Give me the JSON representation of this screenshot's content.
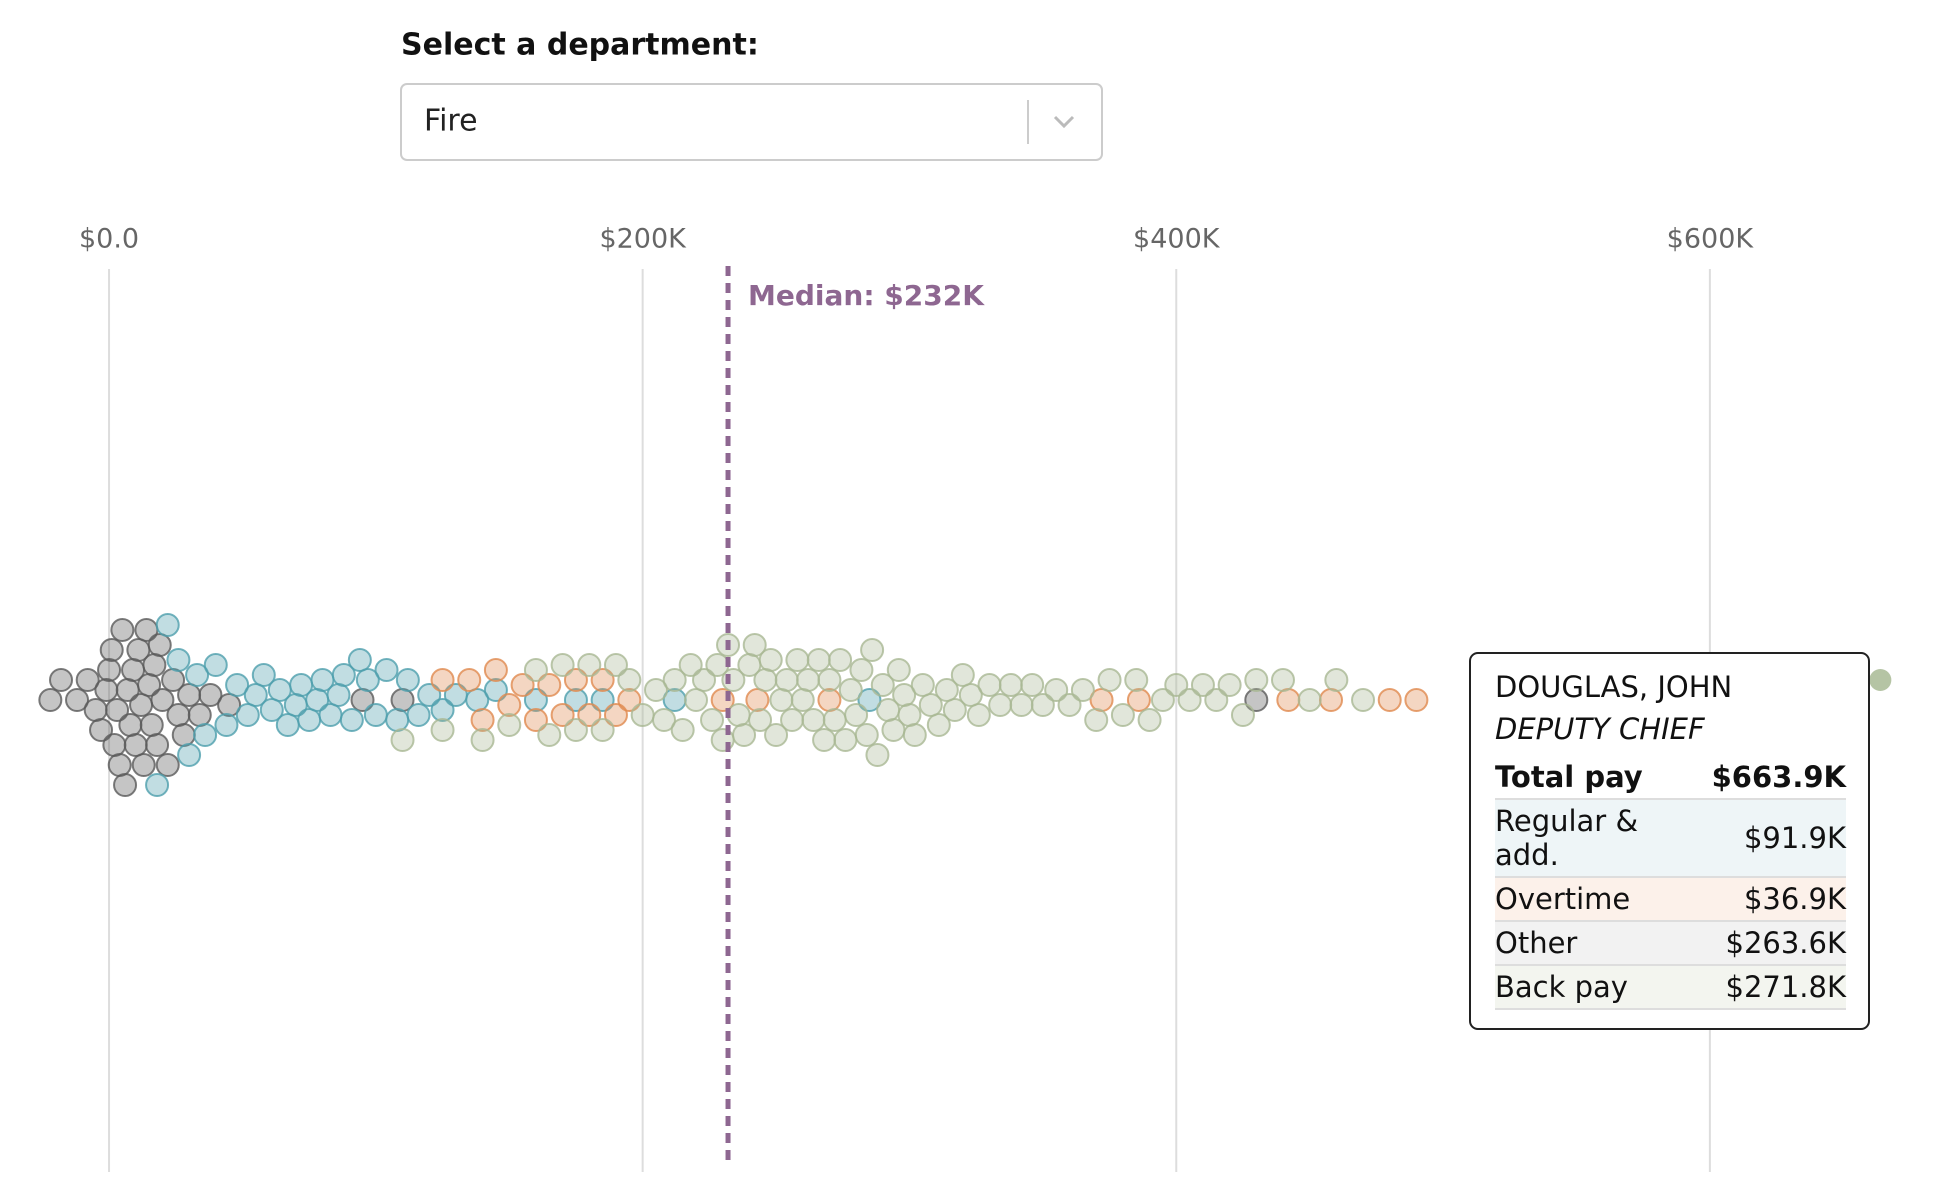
{
  "controls": {
    "label": "Select a department:",
    "selected": "Fire"
  },
  "chart_data": {
    "type": "beeswarm",
    "xlim": [
      -30000,
      690000
    ],
    "xticks": [
      {
        "value": 0,
        "label": "$0.0"
      },
      {
        "value": 200000,
        "label": "$200K"
      },
      {
        "value": 400000,
        "label": "$400K"
      },
      {
        "value": 600000,
        "label": "$600K"
      }
    ],
    "grid": true,
    "median": {
      "value": 232000,
      "label": "Median: $232K",
      "color": "#8e6791"
    },
    "series": [
      {
        "color": "#5a5a5a",
        "values": [
          -22000,
          -18000,
          -12000,
          -8000,
          -5000,
          -3000,
          -1000,
          0,
          1000,
          2000,
          3000,
          4000,
          5000,
          6000,
          7000,
          8000,
          9000,
          10000,
          11000,
          12000,
          13000,
          14000,
          15000,
          16000,
          17000,
          18000,
          19000,
          20000,
          22000,
          24000,
          26000,
          28000,
          30000,
          34000,
          38000,
          45000,
          95000,
          110000,
          430000
        ]
      },
      {
        "color": "#4e9fad",
        "values": [
          18000,
          22000,
          26000,
          30000,
          33000,
          36000,
          40000,
          44000,
          48000,
          52000,
          55000,
          58000,
          61000,
          64000,
          67000,
          70000,
          72000,
          75000,
          78000,
          80000,
          83000,
          86000,
          88000,
          91000,
          94000,
          97000,
          100000,
          104000,
          108000,
          112000,
          116000,
          120000,
          125000,
          130000,
          138000,
          145000,
          160000,
          175000,
          185000,
          212000,
          285000
        ]
      },
      {
        "color": "#e08a4f",
        "values": [
          125000,
          135000,
          140000,
          145000,
          150000,
          155000,
          160000,
          165000,
          170000,
          175000,
          180000,
          185000,
          190000,
          195000,
          230000,
          243000,
          270000,
          372000,
          386000,
          442000,
          458000,
          480000,
          490000
        ]
      },
      {
        "color": "#a9b894",
        "values": [
          110000,
          125000,
          140000,
          150000,
          160000,
          165000,
          170000,
          175000,
          180000,
          185000,
          190000,
          195000,
          200000,
          205000,
          208000,
          212000,
          215000,
          218000,
          220000,
          223000,
          226000,
          228000,
          230000,
          232000,
          234000,
          236000,
          238000,
          240000,
          242000,
          244000,
          246000,
          248000,
          250000,
          252000,
          254000,
          256000,
          258000,
          260000,
          262000,
          264000,
          266000,
          268000,
          270000,
          272000,
          274000,
          276000,
          278000,
          280000,
          282000,
          284000,
          286000,
          288000,
          290000,
          292000,
          294000,
          296000,
          298000,
          300000,
          302000,
          305000,
          308000,
          311000,
          314000,
          317000,
          320000,
          323000,
          326000,
          330000,
          334000,
          338000,
          342000,
          346000,
          350000,
          355000,
          360000,
          365000,
          370000,
          375000,
          380000,
          385000,
          390000,
          395000,
          400000,
          405000,
          410000,
          415000,
          420000,
          425000,
          430000,
          440000,
          450000,
          460000,
          470000
        ]
      }
    ],
    "highlight": {
      "value": 663900,
      "color": "#b5c4a4"
    },
    "tooltip": {
      "name": "DOUGLAS, JOHN",
      "title": "DEPUTY CHIEF",
      "total_label": "Total pay",
      "total": "$663.9K",
      "rows": [
        {
          "label": "Regular & add.",
          "value": "$91.9K",
          "color": "#eef5f7"
        },
        {
          "label": "Overtime",
          "value": "$36.9K",
          "color": "#fcf1ea"
        },
        {
          "label": "Other",
          "value": "$263.6K",
          "color": "#f2f2f2"
        },
        {
          "label": "Back pay",
          "value": "$271.8K",
          "color": "#f3f5ef"
        }
      ]
    }
  }
}
